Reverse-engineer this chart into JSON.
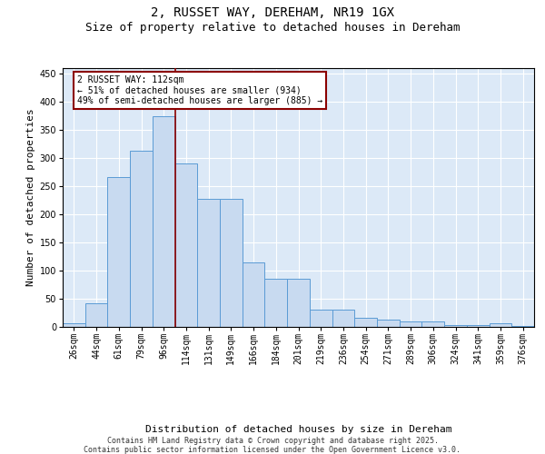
{
  "title": "2, RUSSET WAY, DEREHAM, NR19 1GX",
  "subtitle": "Size of property relative to detached houses in Dereham",
  "xlabel": "Distribution of detached houses by size in Dereham",
  "ylabel": "Number of detached properties",
  "categories": [
    "26sqm",
    "44sqm",
    "61sqm",
    "79sqm",
    "96sqm",
    "114sqm",
    "131sqm",
    "149sqm",
    "166sqm",
    "184sqm",
    "201sqm",
    "219sqm",
    "236sqm",
    "254sqm",
    "271sqm",
    "289sqm",
    "306sqm",
    "324sqm",
    "341sqm",
    "359sqm",
    "376sqm"
  ],
  "values": [
    6,
    42,
    267,
    313,
    375,
    290,
    228,
    228,
    115,
    85,
    85,
    31,
    31,
    16,
    13,
    10,
    10,
    4,
    4,
    6,
    2
  ],
  "bar_color": "#c8daf0",
  "bar_edge_color": "#5b9bd5",
  "vline_color": "#8b0000",
  "vline_index": 5,
  "annotation_line1": "2 RUSSET WAY: 112sqm",
  "annotation_line2": "← 51% of detached houses are smaller (934)",
  "annotation_line3": "49% of semi-detached houses are larger (885) →",
  "annotation_box_edgecolor": "#8b0000",
  "ylim": [
    0,
    460
  ],
  "yticks": [
    0,
    50,
    100,
    150,
    200,
    250,
    300,
    350,
    400,
    450
  ],
  "background_color": "#dce9f7",
  "grid_color": "#ffffff",
  "footer_line1": "Contains HM Land Registry data © Crown copyright and database right 2025.",
  "footer_line2": "Contains public sector information licensed under the Open Government Licence v3.0.",
  "title_fontsize": 10,
  "subtitle_fontsize": 9,
  "xlabel_fontsize": 8,
  "ylabel_fontsize": 8,
  "tick_fontsize": 7,
  "annot_fontsize": 7,
  "footer_fontsize": 6
}
